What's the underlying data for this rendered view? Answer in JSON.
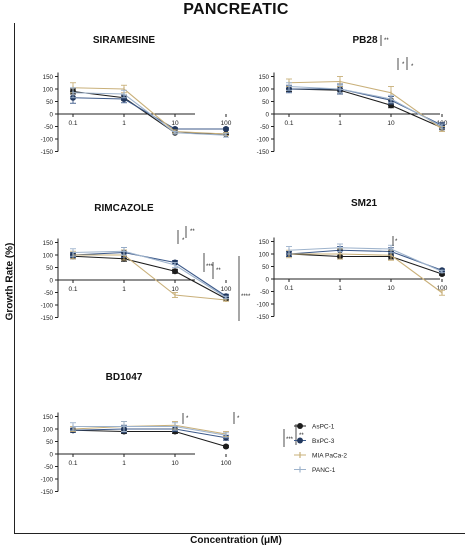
{
  "figure": {
    "title": "PANCREATIC",
    "ylabel": "Growth Rate (%)",
    "xlabel": "Concentration (μM)"
  },
  "legend": {
    "position": "bottom-right",
    "entries": [
      {
        "name": "AsPC-1",
        "color": "#1c1c1c",
        "marker": "circle"
      },
      {
        "name": "BxPC-3",
        "color": "#2d4a7a",
        "marker": "square"
      },
      {
        "name": "MIA PaCa-2",
        "color": "#c9b07a",
        "marker": "triangle"
      },
      {
        "name": "PANC-1",
        "color": "#9eb3cc",
        "marker": "triangle-down"
      }
    ]
  },
  "colors": {
    "axis": "#222222",
    "significance": "#222222"
  },
  "chart_data": [
    {
      "type": "line",
      "title": "SIRAMESINE",
      "x": [
        0.1,
        1,
        10,
        100
      ],
      "x_scale": "log",
      "ylim": [
        -150,
        150
      ],
      "yticks": [
        150,
        100,
        50,
        0,
        -50,
        -100,
        -150
      ],
      "xtick_labels": [
        "0.1",
        "1",
        "10",
        "100"
      ],
      "series": [
        {
          "name": "AsPC-1",
          "values": [
            90,
            65,
            -75,
            -80
          ],
          "err": [
            10,
            10,
            5,
            5
          ]
        },
        {
          "name": "BxPC-3",
          "values": [
            65,
            60,
            -60,
            -60
          ],
          "err": [
            22,
            15,
            5,
            5
          ]
        },
        {
          "name": "MIA PaCa-2",
          "values": [
            105,
            100,
            -70,
            -80
          ],
          "err": [
            20,
            15,
            6,
            6
          ]
        },
        {
          "name": "PANC-1",
          "values": [
            85,
            80,
            -75,
            -85
          ],
          "err": [
            20,
            15,
            5,
            8
          ]
        }
      ],
      "annotations": []
    },
    {
      "type": "line",
      "title": "PB28",
      "x": [
        0.1,
        1,
        10,
        100
      ],
      "x_scale": "log",
      "ylim": [
        -150,
        150
      ],
      "yticks": [
        150,
        100,
        50,
        0,
        -50,
        -100,
        -150
      ],
      "xtick_labels": [
        "0.1",
        "1",
        "10",
        "100"
      ],
      "series": [
        {
          "name": "AsPC-1",
          "values": [
            100,
            95,
            35,
            -55
          ],
          "err": [
            10,
            15,
            10,
            8
          ]
        },
        {
          "name": "BxPC-3",
          "values": [
            100,
            100,
            55,
            -45
          ],
          "err": [
            15,
            20,
            15,
            10
          ]
        },
        {
          "name": "MIA PaCa-2",
          "values": [
            125,
            130,
            85,
            -60
          ],
          "err": [
            15,
            20,
            25,
            10
          ]
        },
        {
          "name": "PANC-1",
          "values": [
            110,
            100,
            60,
            -50
          ],
          "err": [
            15,
            15,
            15,
            10
          ]
        }
      ],
      "annotations": [
        "*",
        "*",
        "**"
      ]
    },
    {
      "type": "line",
      "title": "RIMCAZOLE",
      "x": [
        0.1,
        1,
        10,
        100
      ],
      "x_scale": "log",
      "ylim": [
        -150,
        150
      ],
      "yticks": [
        150,
        100,
        50,
        0,
        -50,
        -100,
        -150
      ],
      "xtick_labels": [
        "0.1",
        "1",
        "10",
        "100"
      ],
      "series": [
        {
          "name": "AsPC-1",
          "values": [
            95,
            85,
            35,
            -75
          ],
          "err": [
            10,
            10,
            8,
            5
          ]
        },
        {
          "name": "BxPC-3",
          "values": [
            100,
            110,
            70,
            -65
          ],
          "err": [
            10,
            20,
            8,
            8
          ]
        },
        {
          "name": "MIA PaCa-2",
          "values": [
            100,
            100,
            -60,
            -80
          ],
          "err": [
            15,
            20,
            10,
            5
          ]
        },
        {
          "name": "PANC-1",
          "values": [
            110,
            115,
            60,
            -70
          ],
          "err": [
            15,
            15,
            10,
            5
          ]
        }
      ],
      "annotations": [
        "**",
        "*",
        "***",
        "**",
        "****"
      ]
    },
    {
      "type": "line",
      "title": "SM21",
      "x": [
        0.1,
        1,
        10,
        100
      ],
      "x_scale": "log",
      "ylim": [
        -150,
        150
      ],
      "yticks": [
        150,
        100,
        50,
        0,
        -50,
        -100,
        -150
      ],
      "xtick_labels": [
        "0.1",
        "1",
        "10",
        "100"
      ],
      "series": [
        {
          "name": "AsPC-1",
          "values": [
            100,
            90,
            90,
            20
          ],
          "err": [
            10,
            10,
            10,
            5
          ]
        },
        {
          "name": "BxPC-3",
          "values": [
            100,
            115,
            110,
            35
          ],
          "err": [
            10,
            15,
            15,
            5
          ]
        },
        {
          "name": "MIA PaCa-2",
          "values": [
            100,
            100,
            95,
            -55
          ],
          "err": [
            15,
            20,
            20,
            10
          ]
        },
        {
          "name": "PANC-1",
          "values": [
            115,
            125,
            120,
            30
          ],
          "err": [
            15,
            15,
            15,
            5
          ]
        }
      ],
      "annotations": [
        "*",
        "***"
      ]
    },
    {
      "type": "line",
      "title": "BD1047",
      "x": [
        0.1,
        1,
        10,
        100
      ],
      "x_scale": "log",
      "ylim": [
        -150,
        150
      ],
      "yticks": [
        150,
        100,
        50,
        0,
        -50,
        -100,
        -150
      ],
      "xtick_labels": [
        "0.1",
        "1",
        "10",
        "100"
      ],
      "series": [
        {
          "name": "AsPC-1",
          "values": [
            95,
            90,
            90,
            30
          ],
          "err": [
            8,
            8,
            8,
            5
          ]
        },
        {
          "name": "BxPC-3",
          "values": [
            95,
            100,
            100,
            65
          ],
          "err": [
            8,
            15,
            10,
            10
          ]
        },
        {
          "name": "MIA PaCa-2",
          "values": [
            100,
            110,
            115,
            80
          ],
          "err": [
            10,
            20,
            15,
            10
          ]
        },
        {
          "name": "PANC-1",
          "values": [
            110,
            110,
            110,
            75
          ],
          "err": [
            15,
            20,
            15,
            10
          ]
        }
      ],
      "annotations": [
        "*",
        "*",
        "***",
        "**"
      ]
    }
  ]
}
